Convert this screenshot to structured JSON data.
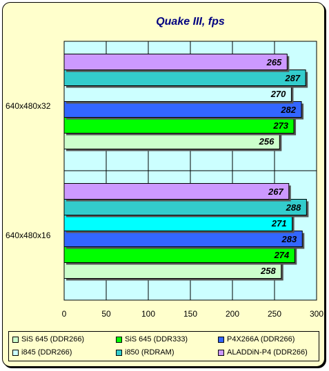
{
  "chart_data": {
    "type": "bar",
    "orientation": "horizontal",
    "title": "Quake III, fps",
    "categories": [
      "640x480x32",
      "640x480x16"
    ],
    "series": [
      {
        "name": "SiS 645 (DDR266)",
        "color": "#ccffcc",
        "values": [
          256,
          258
        ]
      },
      {
        "name": "SiS 645 (DDR333)",
        "color": "#00ff00",
        "values": [
          273,
          274
        ]
      },
      {
        "name": "P4X266A (DDR266)",
        "color": "#3366ff",
        "values": [
          282,
          283
        ]
      },
      {
        "name": "i845 (DDR266)",
        "color": "#ccffff",
        "values": [
          270,
          271
        ]
      },
      {
        "name": "i850 (RDRAM)",
        "color": "#33cccc",
        "values": [
          287,
          288
        ]
      },
      {
        "name": "ALADDiN-P4 (DDR266)",
        "color": "#cc99ff",
        "values": [
          265,
          267
        ]
      }
    ],
    "xlim": [
      0,
      300
    ],
    "xticks": [
      0,
      50,
      100,
      150,
      200,
      250,
      300
    ],
    "grid": true,
    "legend_position": "bottom",
    "plot_background": "#ccffff",
    "i845_color_group2": "#00ffff"
  }
}
